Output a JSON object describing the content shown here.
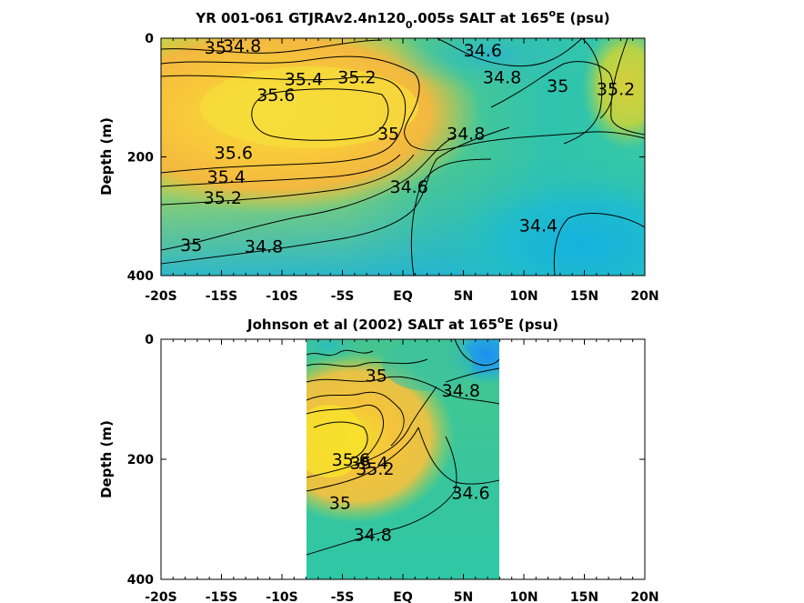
{
  "chart_data": [
    {
      "type": "heatmap",
      "title_parts": {
        "pre": "YR 001-061 GTJRAv2.4n120",
        "sub": "0",
        "mid": ".005s SALT at 165",
        "sup": "o",
        "post": "E (psu)"
      },
      "ylabel": "Depth (m)",
      "xlim": [
        -20,
        20
      ],
      "ylim": [
        0,
        400
      ],
      "y_reversed": true,
      "x_ticks": [
        -20,
        -15,
        -10,
        -5,
        0,
        5,
        10,
        15,
        20
      ],
      "x_tick_labels": [
        "-20S",
        "-15S",
        "-10S",
        "-5S",
        "EQ",
        "5N",
        "10N",
        "15N",
        "20N"
      ],
      "y_ticks": [
        0,
        200,
        400
      ],
      "y_tick_labels": [
        "0",
        "200",
        "400"
      ],
      "data_extent_x": [
        -20,
        20
      ],
      "colors": {
        "low": "#1fb6d8",
        "mid": "#2fc8a2",
        "high": "#f5d63a",
        "peak": "#f8b43c"
      },
      "contour_labels": [
        {
          "text": "35",
          "x": -15.5,
          "y": 15
        },
        {
          "text": "34.8",
          "x": -13.3,
          "y": 12
        },
        {
          "text": "34.6",
          "x": 6.6,
          "y": 20
        },
        {
          "text": "34.8",
          "x": 8.2,
          "y": 65
        },
        {
          "text": "35",
          "x": 12.8,
          "y": 80
        },
        {
          "text": "35.2",
          "x": 17.6,
          "y": 85
        },
        {
          "text": "35.4",
          "x": -8.2,
          "y": 68
        },
        {
          "text": "35.2",
          "x": -3.8,
          "y": 65
        },
        {
          "text": "35.6",
          "x": -10.5,
          "y": 95
        },
        {
          "text": "35",
          "x": -1.2,
          "y": 160
        },
        {
          "text": "34.8",
          "x": 5.2,
          "y": 160
        },
        {
          "text": "35.6",
          "x": -14.0,
          "y": 192
        },
        {
          "text": "35.4",
          "x": -14.6,
          "y": 233
        },
        {
          "text": "35.2",
          "x": -14.9,
          "y": 268
        },
        {
          "text": "34.6",
          "x": 0.5,
          "y": 250
        },
        {
          "text": "34.4",
          "x": 11.2,
          "y": 315
        },
        {
          "text": "35",
          "x": -17.5,
          "y": 348
        },
        {
          "text": "34.8",
          "x": -11.5,
          "y": 350
        }
      ]
    },
    {
      "type": "heatmap",
      "title_parts": {
        "pre": "Johnson et al (2002) SALT at 165",
        "sup": "o",
        "post": "E (psu)"
      },
      "ylabel": "Depth (m)",
      "xlim": [
        -20,
        20
      ],
      "ylim": [
        0,
        400
      ],
      "y_reversed": true,
      "x_ticks": [
        -20,
        -15,
        -10,
        -5,
        0,
        5,
        10,
        15,
        20
      ],
      "x_tick_labels": [
        "-20S",
        "-15S",
        "-10S",
        "-5S",
        "EQ",
        "5N",
        "10N",
        "15N",
        "20N"
      ],
      "y_ticks": [
        0,
        200,
        400
      ],
      "y_tick_labels": [
        "0",
        "200",
        "400"
      ],
      "data_extent_x": [
        -8,
        8
      ],
      "colors": {
        "low": "#2b9be6",
        "mid": "#2fc8a2",
        "high": "#f5d63a",
        "peak": "#f8b43c"
      },
      "contour_labels": [
        {
          "text": "35",
          "x": -2.2,
          "y": 60
        },
        {
          "text": "34.8",
          "x": 4.8,
          "y": 85
        },
        {
          "text": "35.6",
          "x": -4.3,
          "y": 200
        },
        {
          "text": "35.4",
          "x": -2.8,
          "y": 205
        },
        {
          "text": "35.2",
          "x": -2.3,
          "y": 215
        },
        {
          "text": "34.6",
          "x": 5.6,
          "y": 255
        },
        {
          "text": "35",
          "x": -5.2,
          "y": 272
        },
        {
          "text": "34.8",
          "x": -2.5,
          "y": 325
        }
      ]
    }
  ]
}
